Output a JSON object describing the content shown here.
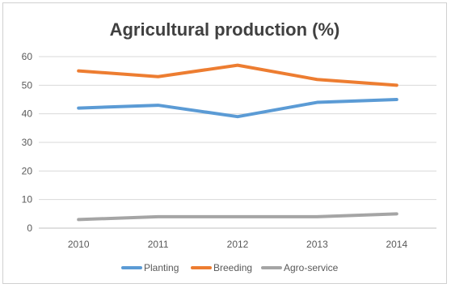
{
  "chart_data": {
    "type": "line",
    "title": "Agricultural production (%)",
    "categories": [
      "2010",
      "2011",
      "2012",
      "2013",
      "2014"
    ],
    "series": [
      {
        "name": "Planting",
        "values": [
          42,
          43,
          39,
          44,
          45
        ],
        "color": "#5b9bd5"
      },
      {
        "name": "Breeding",
        "values": [
          55,
          53,
          57,
          52,
          50
        ],
        "color": "#ed7d31"
      },
      {
        "name": "Agro-service",
        "values": [
          3,
          4,
          4,
          4,
          5
        ],
        "color": "#a5a5a5"
      }
    ],
    "y_ticks": [
      "0",
      "10",
      "20",
      "30",
      "40",
      "50",
      "60"
    ],
    "ylim": [
      0,
      60
    ],
    "grid": true,
    "legend_position": "bottom"
  }
}
